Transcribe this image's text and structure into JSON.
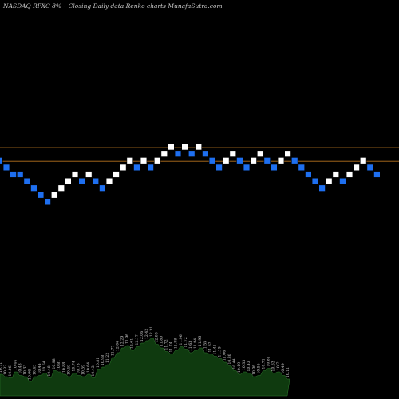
{
  "header": {
    "title": "NASDAQ RPXC 8%~  Closing Daily data  Renko  charts MunafaSutra.com"
  },
  "chart_data": {
    "type": "renko",
    "title": "NASDAQ RPXC 8%~  Closing Daily data  Renko  charts MunafaSutra.com",
    "brick_size_pct": 8,
    "levels": [
      11,
      10,
      9,
      8,
      7,
      6,
      5
    ],
    "brick_levels": [
      11,
      10,
      9,
      8,
      7,
      6,
      5,
      4,
      3,
      2,
      1,
      0
    ],
    "bricks": [
      {
        "level": 6,
        "dir": "down"
      },
      {
        "level": 5,
        "dir": "down"
      },
      {
        "level": 4,
        "dir": "down"
      },
      {
        "level": 4,
        "dir": "down"
      },
      {
        "level": 3,
        "dir": "down"
      },
      {
        "level": 2,
        "dir": "down"
      },
      {
        "level": 1,
        "dir": "down"
      },
      {
        "level": 0,
        "dir": "down"
      },
      {
        "level": 1,
        "dir": "up"
      },
      {
        "level": 2,
        "dir": "up"
      },
      {
        "level": 3,
        "dir": "up"
      },
      {
        "level": 4,
        "dir": "up"
      },
      {
        "level": 3,
        "dir": "down"
      },
      {
        "level": 4,
        "dir": "up"
      },
      {
        "level": 3,
        "dir": "down"
      },
      {
        "level": 2,
        "dir": "down"
      },
      {
        "level": 3,
        "dir": "up"
      },
      {
        "level": 4,
        "dir": "up"
      },
      {
        "level": 5,
        "dir": "up"
      },
      {
        "level": 6,
        "dir": "up"
      },
      {
        "level": 5,
        "dir": "down"
      },
      {
        "level": 6,
        "dir": "up"
      },
      {
        "level": 5,
        "dir": "down"
      },
      {
        "level": 6,
        "dir": "up"
      },
      {
        "level": 7,
        "dir": "up"
      },
      {
        "level": 8,
        "dir": "up"
      },
      {
        "level": 7,
        "dir": "down"
      },
      {
        "level": 8,
        "dir": "up"
      },
      {
        "level": 7,
        "dir": "down"
      },
      {
        "level": 8,
        "dir": "up"
      },
      {
        "level": 7,
        "dir": "down"
      },
      {
        "level": 6,
        "dir": "down"
      },
      {
        "level": 5,
        "dir": "down"
      },
      {
        "level": 6,
        "dir": "up"
      },
      {
        "level": 7,
        "dir": "up"
      },
      {
        "level": 6,
        "dir": "down"
      },
      {
        "level": 5,
        "dir": "down"
      },
      {
        "level": 6,
        "dir": "up"
      },
      {
        "level": 7,
        "dir": "up"
      },
      {
        "level": 6,
        "dir": "down"
      },
      {
        "level": 5,
        "dir": "down"
      },
      {
        "level": 6,
        "dir": "up"
      },
      {
        "level": 7,
        "dir": "up"
      },
      {
        "level": 6,
        "dir": "down"
      },
      {
        "level": 5,
        "dir": "down"
      },
      {
        "level": 4,
        "dir": "down"
      },
      {
        "level": 3,
        "dir": "down"
      },
      {
        "level": 2,
        "dir": "down"
      },
      {
        "level": 3,
        "dir": "up"
      },
      {
        "level": 4,
        "dir": "up"
      },
      {
        "level": 3,
        "dir": "down"
      },
      {
        "level": 4,
        "dir": "up"
      },
      {
        "level": 5,
        "dir": "up"
      },
      {
        "level": 6,
        "dir": "up"
      },
      {
        "level": 5,
        "dir": "down"
      },
      {
        "level": 4,
        "dir": "down"
      }
    ],
    "reference_levels": [
      8,
      6
    ],
    "volume_labels": [
      "10.71",
      "10.33",
      "10.06",
      "10.44",
      "10.43",
      "10.33",
      "10.06",
      "10.43",
      "10.44",
      "10.64",
      "10.48",
      "10.98",
      "10.81",
      "10.88",
      "10.49",
      "10.74",
      "10.73",
      "10.59",
      "10.64",
      "10.43",
      "10.81",
      "10.98",
      "11.22",
      "11.77",
      "12.06",
      "12.29",
      "11.96",
      "12.01",
      "12.17",
      "12.06",
      "12.42",
      "12.31",
      "12.08",
      "11.80",
      "11.72",
      "11.74",
      "11.88",
      "11.96",
      "11.72",
      "11.63",
      "11.84",
      "11.96",
      "11.55",
      "11.62",
      "11.41",
      "11.19",
      "11.06",
      "10.80",
      "10.44",
      "10.19",
      "10.33",
      "10.43",
      "10.06",
      "10.55",
      "10.71",
      "10.81",
      "10.63",
      "10.71",
      "10.49",
      "10.11"
    ],
    "volume_values": [
      18,
      16,
      15,
      20,
      17,
      16,
      12,
      16,
      17,
      19,
      15,
      21,
      20,
      18,
      16,
      19,
      17,
      16,
      18,
      15,
      22,
      24,
      26,
      32,
      36,
      40,
      42,
      38,
      41,
      44,
      46,
      48,
      43,
      40,
      37,
      35,
      38,
      41,
      39,
      36,
      38,
      40,
      36,
      35,
      33,
      31,
      28,
      25,
      21,
      18,
      20,
      19,
      16,
      17,
      21,
      23,
      19,
      20,
      17,
      14
    ],
    "colors": {
      "background": "#000000",
      "up_brick": "#ffffff",
      "down_brick": "#1e6ff0",
      "brick_border": "#000000",
      "reference_line": "#b8741f",
      "volume_fill": "#0f3a0f",
      "volume_line": "#2e7d2e",
      "title_text": "#c9c9c9"
    }
  }
}
